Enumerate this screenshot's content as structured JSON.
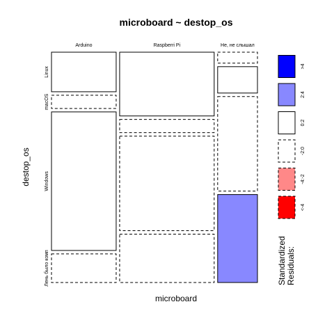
{
  "chart_data": {
    "type": "mosaic",
    "title": "microboard ~ destop_os",
    "xlabel": "microboard",
    "ylabel": "destop_os",
    "columns": [
      "Arduino",
      "Raspberri Pi",
      "Не, не слышал"
    ],
    "rows": [
      "Linux",
      "macOS",
      "Windows",
      "Лень было комп"
    ],
    "column_proportions": [
      0.325,
      0.475,
      0.2
    ],
    "cell_proportions": [
      [
        0.18,
        0.06,
        0.63,
        0.13
      ],
      [
        0.29,
        0.06,
        0.43,
        0.22
      ],
      [
        0.05,
        0.12,
        0.43,
        0.4
      ]
    ],
    "residual_class": [
      [
        "0:2",
        "-2:0",
        "0:2",
        "-2:0"
      ],
      [
        "0:2",
        "-2:0",
        "-2:0",
        "-2:0"
      ],
      [
        "-2:0",
        "0:2",
        "-2:0",
        "2:4"
      ]
    ],
    "legend": {
      "title": "Standardized Residuals:",
      "placement": "right",
      "items": [
        {
          "label": "<-4",
          "fill": "#ff0000",
          "dashed": true
        },
        {
          "label": "-4:-2",
          "fill": "#ff8888",
          "dashed": true
        },
        {
          "label": "-2:0",
          "fill": "#ffffff",
          "dashed": true
        },
        {
          "label": "0:2",
          "fill": "#ffffff",
          "dashed": false
        },
        {
          "label": "2:4",
          "fill": "#8888ff",
          "dashed": false
        },
        {
          "label": ">4",
          "fill": "#0000ff",
          "dashed": false
        }
      ]
    }
  }
}
